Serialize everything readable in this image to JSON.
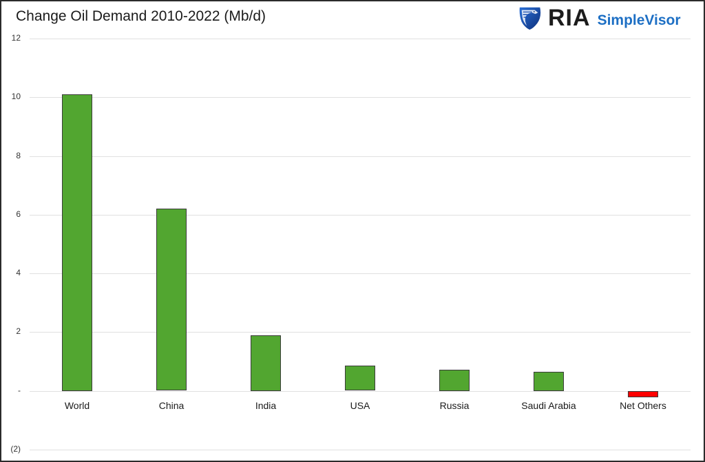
{
  "header": {
    "title": "Change Oil Demand 2010-2022 (Mb/d)",
    "logo_primary": "RIA",
    "logo_secondary": "SimpleVisor",
    "logo_icon": "eagle-shield-icon"
  },
  "colors": {
    "positive": "#52a630",
    "negative": "#ff0000",
    "logo_blue": "#1d6fc4",
    "gridline": "#e0e0e0"
  },
  "chart_data": {
    "type": "bar",
    "title": "Change Oil Demand 2010-2022 (Mb/d)",
    "xlabel": "",
    "ylabel": "",
    "categories": [
      "World",
      "China",
      "India",
      "USA",
      "Russia",
      "Saudi Arabia",
      "Net Others"
    ],
    "values": [
      10.1,
      6.2,
      1.9,
      0.85,
      0.72,
      0.65,
      -0.22
    ],
    "ylim": [
      -2,
      12
    ],
    "yticks": [
      12,
      10,
      8,
      6,
      4,
      2,
      0,
      -2
    ],
    "ytick_labels": [
      "12",
      "10",
      "8",
      "6",
      "4",
      "2",
      "-",
      "(2)"
    ],
    "grid": true,
    "legend": "none"
  }
}
